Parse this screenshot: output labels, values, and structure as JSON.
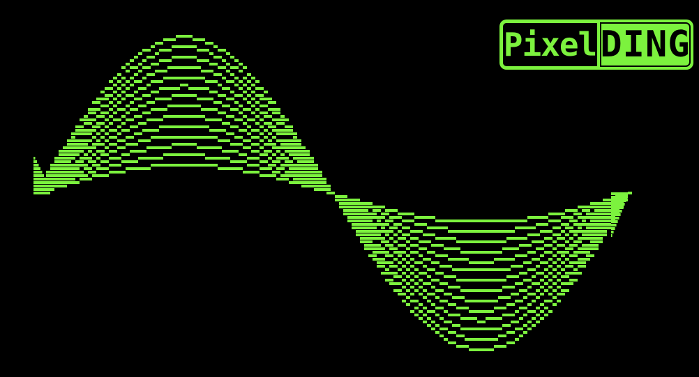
{
  "logo": {
    "left_text": "Pixel",
    "right_text": "DING"
  },
  "colors": {
    "background": "#000000",
    "accent": "#7CF23E"
  },
  "wave": {
    "shape": "sine",
    "cycles": 1,
    "trace_count": 14
  }
}
